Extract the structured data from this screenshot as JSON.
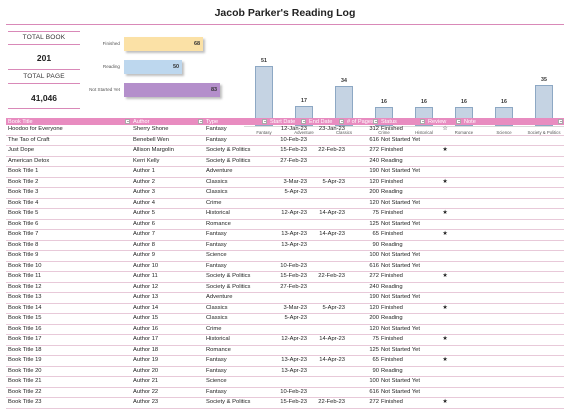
{
  "title": "Jacob Parker's Reading Log",
  "kpis": {
    "total_book_label": "TOTAL BOOK",
    "total_book_value": "201",
    "total_page_label": "TOTAL PAGE",
    "total_page_value": "41,046"
  },
  "status_chart": {
    "type": "bar",
    "orientation": "horizontal",
    "categories": [
      "Finished",
      "Reading",
      "Not Started Yet"
    ],
    "values": [
      68,
      50,
      83
    ],
    "colors": [
      "#fbe1a6",
      "#bdd7ee",
      "#b48fcb"
    ]
  },
  "chart_data": {
    "type": "bar",
    "categories": [
      "Fantasy",
      "Adventure",
      "Classics",
      "Crime",
      "Historical",
      "Romance",
      "Science",
      "Society & Politics"
    ],
    "values": [
      51,
      17,
      34,
      16,
      16,
      16,
      16,
      35
    ]
  },
  "table": {
    "columns": [
      "Book Title",
      "Author",
      "Type",
      "Start Date",
      "End Date",
      "# of Pages",
      "Status",
      "Review",
      "Note"
    ],
    "rows": [
      [
        "Hoodoo for Everyone",
        "Sherry Shone",
        "Fantasy",
        "12-Jan-23",
        "23-Jan-23",
        "312",
        "Finished",
        "outline",
        ""
      ],
      [
        "The Tao of Craft",
        "Benebell Wen",
        "Fantasy",
        "10-Feb-23",
        "",
        "616",
        "Not Started Yet",
        "",
        ""
      ],
      [
        "Just Dope",
        "Allison Margolin",
        "Society & Politics",
        "15-Feb-23",
        "22-Feb-23",
        "272",
        "Finished",
        "filled",
        ""
      ],
      [
        "American Detox",
        "Kerri Kelly",
        "Society & Politics",
        "27-Feb-23",
        "",
        "240",
        "Reading",
        "",
        ""
      ],
      [
        "Book Title 1",
        "Author 1",
        "Adventure",
        "",
        "",
        "190",
        "Not Started Yet",
        "",
        ""
      ],
      [
        "Book Title 2",
        "Author 2",
        "Classics",
        "3-Mar-23",
        "5-Apr-23",
        "120",
        "Finished",
        "filled",
        ""
      ],
      [
        "Book Title 3",
        "Author 3",
        "Classics",
        "5-Apr-23",
        "",
        "200",
        "Reading",
        "",
        ""
      ],
      [
        "Book Title 4",
        "Author 4",
        "Crime",
        "",
        "",
        "120",
        "Not Started Yet",
        "",
        ""
      ],
      [
        "Book Title 5",
        "Author 5",
        "Historical",
        "12-Apr-23",
        "14-Apr-23",
        "75",
        "Finished",
        "filled",
        ""
      ],
      [
        "Book Title 6",
        "Author 6",
        "Romance",
        "",
        "",
        "125",
        "Not Started Yet",
        "",
        ""
      ],
      [
        "Book Title 7",
        "Author 7",
        "Fantasy",
        "13-Apr-23",
        "14-Apr-23",
        "65",
        "Finished",
        "filled",
        ""
      ],
      [
        "Book Title 8",
        "Author 8",
        "Fantasy",
        "13-Apr-23",
        "",
        "90",
        "Reading",
        "",
        ""
      ],
      [
        "Book Title 9",
        "Author 9",
        "Science",
        "",
        "",
        "100",
        "Not Started Yet",
        "",
        ""
      ],
      [
        "Book Title 10",
        "Author 10",
        "Fantasy",
        "10-Feb-23",
        "",
        "616",
        "Not Started Yet",
        "",
        ""
      ],
      [
        "Book Title 11",
        "Author 11",
        "Society & Politics",
        "15-Feb-23",
        "22-Feb-23",
        "272",
        "Finished",
        "filled",
        ""
      ],
      [
        "Book Title 12",
        "Author 12",
        "Society & Politics",
        "27-Feb-23",
        "",
        "240",
        "Reading",
        "",
        ""
      ],
      [
        "Book Title 13",
        "Author 13",
        "Adventure",
        "",
        "",
        "190",
        "Not Started Yet",
        "",
        ""
      ],
      [
        "Book Title 14",
        "Author 14",
        "Classics",
        "3-Mar-23",
        "5-Apr-23",
        "120",
        "Finished",
        "filled",
        ""
      ],
      [
        "Book Title 15",
        "Author 15",
        "Classics",
        "5-Apr-23",
        "",
        "200",
        "Reading",
        "",
        ""
      ],
      [
        "Book Title 16",
        "Author 16",
        "Crime",
        "",
        "",
        "120",
        "Not Started Yet",
        "",
        ""
      ],
      [
        "Book Title 17",
        "Author 17",
        "Historical",
        "12-Apr-23",
        "14-Apr-23",
        "75",
        "Finished",
        "filled",
        ""
      ],
      [
        "Book Title 18",
        "Author 18",
        "Romance",
        "",
        "",
        "125",
        "Not Started Yet",
        "",
        ""
      ],
      [
        "Book Title 19",
        "Author 19",
        "Fantasy",
        "13-Apr-23",
        "14-Apr-23",
        "65",
        "Finished",
        "filled",
        ""
      ],
      [
        "Book Title 20",
        "Author 20",
        "Fantasy",
        "13-Apr-23",
        "",
        "90",
        "Reading",
        "",
        ""
      ],
      [
        "Book Title 21",
        "Author 21",
        "Science",
        "",
        "",
        "100",
        "Not Started Yet",
        "",
        ""
      ],
      [
        "Book Title 22",
        "Author 22",
        "Fantasy",
        "10-Feb-23",
        "",
        "616",
        "Not Started Yet",
        "",
        ""
      ],
      [
        "Book Title 23",
        "Author 23",
        "Society & Politics",
        "15-Feb-23",
        "22-Feb-23",
        "272",
        "Finished",
        "filled",
        ""
      ]
    ]
  },
  "colors": {
    "accent": "#e88cc0",
    "rule": "#d989b8",
    "genre_bar": "#c5d3e3",
    "star": "#e8a81a"
  }
}
